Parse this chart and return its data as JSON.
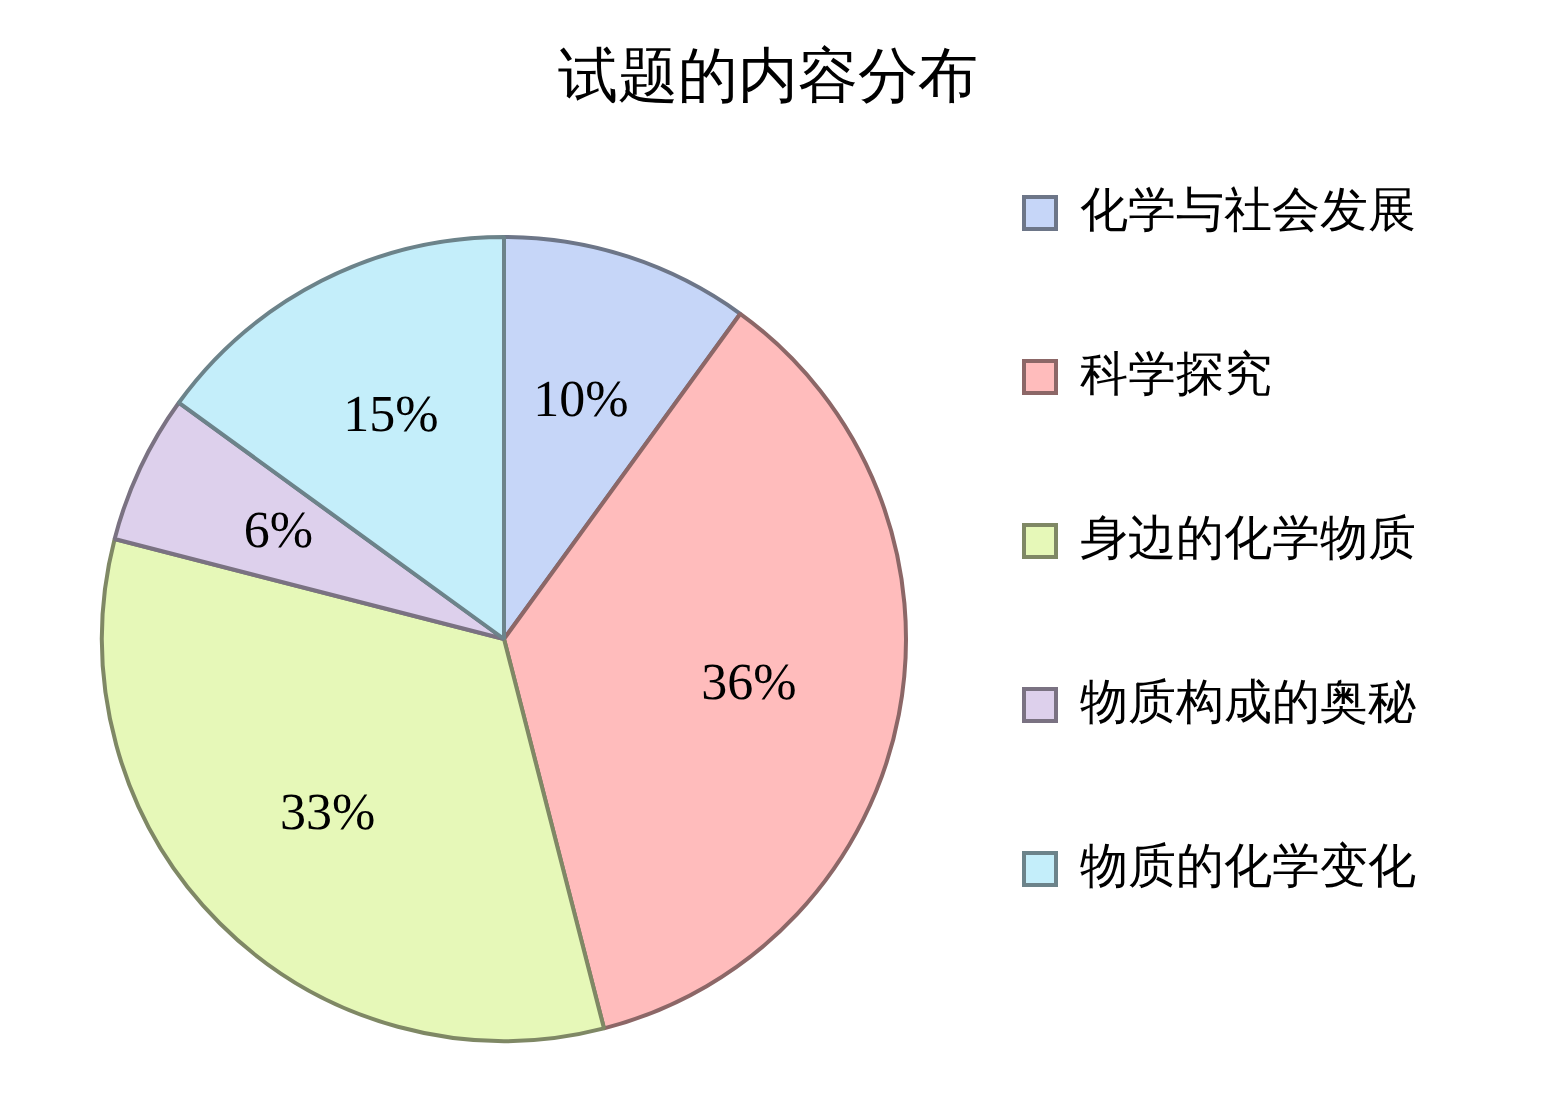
{
  "chart_data": {
    "type": "pie",
    "title": "试题的内容分布",
    "categories": [
      "化学与社会发展",
      "科学探究",
      "身边的化学物质",
      "物质构成的奥秘",
      "物质的化学变化"
    ],
    "values": [
      10,
      36,
      33,
      6,
      15
    ],
    "value_labels": [
      "10%",
      "36%",
      "33%",
      "6%",
      "15%"
    ],
    "colors": [
      "#c6d6f8",
      "#ffbcbc",
      "#e6f8b8",
      "#ddd0ec",
      "#c4eefa"
    ],
    "legend": "right"
  }
}
